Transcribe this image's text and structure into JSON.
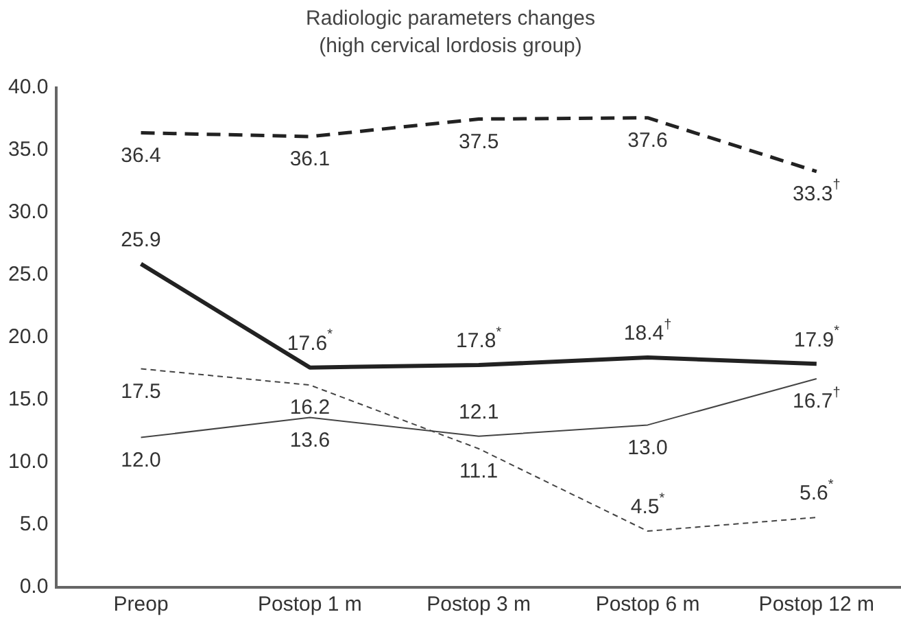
{
  "chart_data": {
    "type": "line",
    "title": "Radiologic parameters changes\n(high cervical lordosis group)",
    "categories": [
      "Preop",
      "Postop 1 m",
      "Postop 3 m",
      "Postop 6 m",
      "Postop 12 m"
    ],
    "ylim": [
      0,
      40
    ],
    "yticks": [
      {
        "value": 0,
        "label": "0.0"
      },
      {
        "value": 5,
        "label": "5.0"
      },
      {
        "value": 10,
        "label": "10.0"
      },
      {
        "value": 15,
        "label": "15.0"
      },
      {
        "value": 20,
        "label": "20.0"
      },
      {
        "value": 25,
        "label": "25.0"
      },
      {
        "value": 30,
        "label": "30.0"
      },
      {
        "value": 35,
        "label": "35.0"
      },
      {
        "value": 40,
        "label": "40.0"
      }
    ],
    "grid": false,
    "legend": false,
    "marker": "none",
    "series": [
      {
        "color": "#222222",
        "line_style": "dashed",
        "values": [
          36.4,
          36.1,
          37.5,
          37.6,
          33.3
        ],
        "value_labels": [
          "36.4",
          "36.1",
          "37.5",
          "37.6",
          "33.3$^{†}$"
        ]
      },
      {
        "color": "#222222",
        "line_style": "solid",
        "values": [
          25.9,
          17.6,
          17.8,
          18.4,
          17.9
        ],
        "value_labels": [
          "25.9",
          "17.6$^{*}$",
          "17.8$^{*}$",
          "18.4$^{†}$",
          "17.9$^{*}$"
        ]
      },
      {
        "color": "#444444",
        "line_style": "dotted",
        "values": [
          17.5,
          16.2,
          11.1,
          4.5,
          5.6
        ],
        "value_labels": [
          "17.5",
          "16.2",
          "11.1",
          "4.5$^{*}$",
          "5.6$^{*}$"
        ]
      },
      {
        "color": "#444444",
        "line_style": "solid",
        "values": [
          12.0,
          13.6,
          12.1,
          13.0,
          16.7
        ],
        "value_labels": [
          "12.0",
          "13.6",
          "12.1",
          "13.0",
          "16.7$^{†}$"
        ]
      }
    ]
  }
}
